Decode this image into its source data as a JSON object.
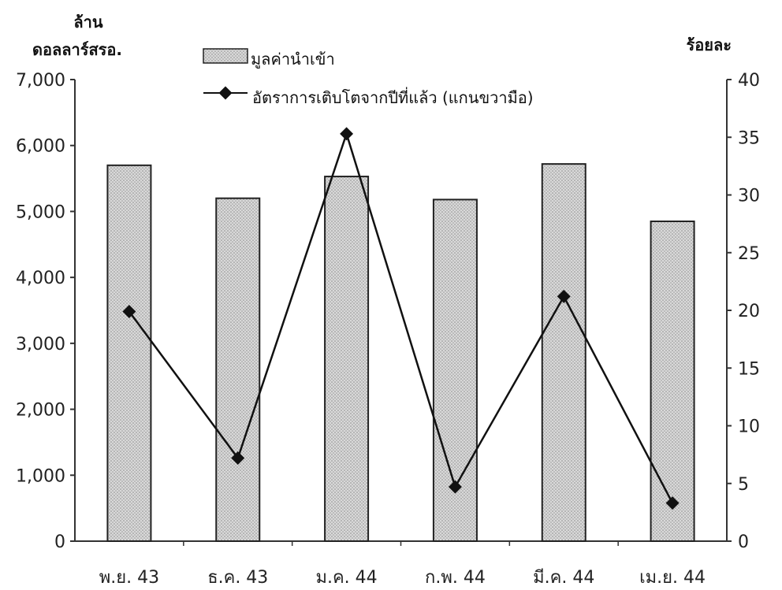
{
  "chart_data": {
    "type": "bar",
    "categories": [
      "พ.ย. 43",
      "ธ.ค. 43",
      "ม.ค. 44",
      "ก.พ. 44",
      "มี.ค. 44",
      "เม.ย. 44"
    ],
    "left_axis_label": [
      "ล้าน",
      "ดอลลาร์สรอ."
    ],
    "right_axis_label": "ร้อยละ",
    "series": [
      {
        "name": "มูลค่านำเข้า",
        "kind": "bar",
        "axis": "left",
        "values": [
          5700,
          5200,
          5530,
          5180,
          5720,
          4850
        ]
      },
      {
        "name": "อัตราการเติบโตจากปีที่แล้ว (แกนขวามือ)",
        "kind": "line",
        "axis": "right",
        "values": [
          19.9,
          7.2,
          35.3,
          4.7,
          21.2,
          3.3
        ]
      }
    ],
    "y_left": {
      "min": 0,
      "max": 7000,
      "ticks": [
        "0",
        "1,000",
        "2,000",
        "3,000",
        "4,000",
        "5,000",
        "6,000",
        "7,000"
      ]
    },
    "y_right": {
      "min": 0,
      "max": 40,
      "ticks": [
        "0",
        "5",
        "10",
        "15",
        "20",
        "25",
        "30",
        "35",
        "40"
      ]
    },
    "grid": false,
    "legend_position": "top-center",
    "colors": {
      "bar_fill": "#cfcfcf",
      "bar_stroke": "#222222",
      "line": "#111111",
      "axis": "#333333"
    }
  }
}
